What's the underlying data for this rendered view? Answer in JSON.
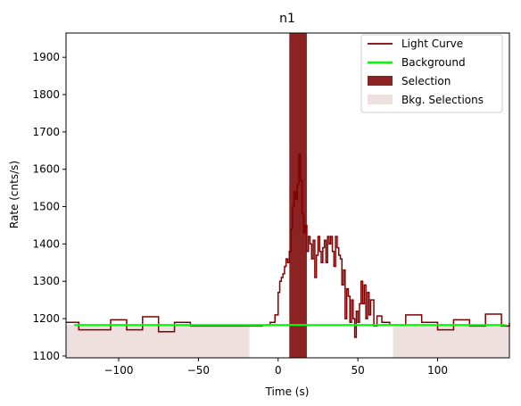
{
  "chart_data": {
    "type": "line",
    "title": "n1",
    "xlabel": "Time (s)",
    "ylabel": "Rate (cnts/s)",
    "xlim": [
      -133,
      145
    ],
    "ylim": [
      1095,
      1965
    ],
    "xticks": [
      -100,
      -50,
      0,
      50,
      100
    ],
    "yticks": [
      1100,
      1200,
      1300,
      1400,
      1500,
      1600,
      1700,
      1800,
      1900
    ],
    "xtick_labels": [
      "−100",
      "−50",
      "0",
      "50",
      "100"
    ],
    "ytick_labels": [
      "1100",
      "1200",
      "1300",
      "1400",
      "1500",
      "1600",
      "1700",
      "1800",
      "1900"
    ],
    "grid": false,
    "legend_position": "top-right",
    "legend": [
      {
        "label": "Light Curve",
        "kind": "line",
        "color": "#800000"
      },
      {
        "label": "Background",
        "kind": "line",
        "color": "#00ff00"
      },
      {
        "label": "Selection",
        "kind": "patch",
        "color": "#8b2323"
      },
      {
        "label": "Bkg. Selections",
        "kind": "patch",
        "color": "#efe0e0"
      }
    ],
    "colors": {
      "light_curve": "#800000",
      "background": "#00ff00",
      "selection": "#8b2323",
      "bkg_selection": "#efe0e0"
    },
    "background_level": 1183,
    "selection": [
      7,
      18
    ],
    "bkg_selections": [
      [
        -133,
        -18
      ],
      [
        72,
        145
      ]
    ],
    "light_curve": {
      "x": [
        -133,
        -125,
        -115,
        -105,
        -95,
        -85,
        -75,
        -65,
        -55,
        -45,
        -35,
        -25,
        -18,
        -10,
        -5,
        -2,
        0,
        1,
        2,
        3,
        4,
        5,
        6,
        7,
        8,
        9,
        10,
        11,
        12,
        13,
        14,
        15,
        16,
        17,
        18,
        19,
        20,
        21,
        22,
        23,
        24,
        25,
        26,
        27,
        28,
        29,
        30,
        31,
        32,
        33,
        34,
        35,
        36,
        37,
        38,
        39,
        40,
        41,
        42,
        43,
        44,
        45,
        46,
        47,
        48,
        49,
        50,
        51,
        52,
        53,
        54,
        55,
        56,
        57,
        58,
        60,
        62,
        65,
        70,
        80,
        90,
        100,
        110,
        120,
        130,
        140,
        145
      ],
      "y": [
        1190,
        1170,
        1170,
        1197,
        1170,
        1205,
        1165,
        1190,
        1180,
        1180,
        1180,
        1180,
        1180,
        1182,
        1190,
        1210,
        1270,
        1300,
        1310,
        1320,
        1340,
        1360,
        1350,
        1380,
        1440,
        1500,
        1540,
        1520,
        1560,
        1640,
        1570,
        1480,
        1430,
        1450,
        1380,
        1420,
        1400,
        1360,
        1410,
        1310,
        1370,
        1420,
        1380,
        1350,
        1390,
        1410,
        1350,
        1420,
        1400,
        1420,
        1380,
        1340,
        1420,
        1390,
        1370,
        1360,
        1290,
        1330,
        1200,
        1280,
        1260,
        1190,
        1250,
        1200,
        1150,
        1220,
        1190,
        1240,
        1300,
        1240,
        1290,
        1200,
        1270,
        1210,
        1250,
        1180,
        1207,
        1190,
        1183,
        1210,
        1190,
        1170,
        1197,
        1180,
        1212,
        1180,
        1188
      ]
    }
  }
}
